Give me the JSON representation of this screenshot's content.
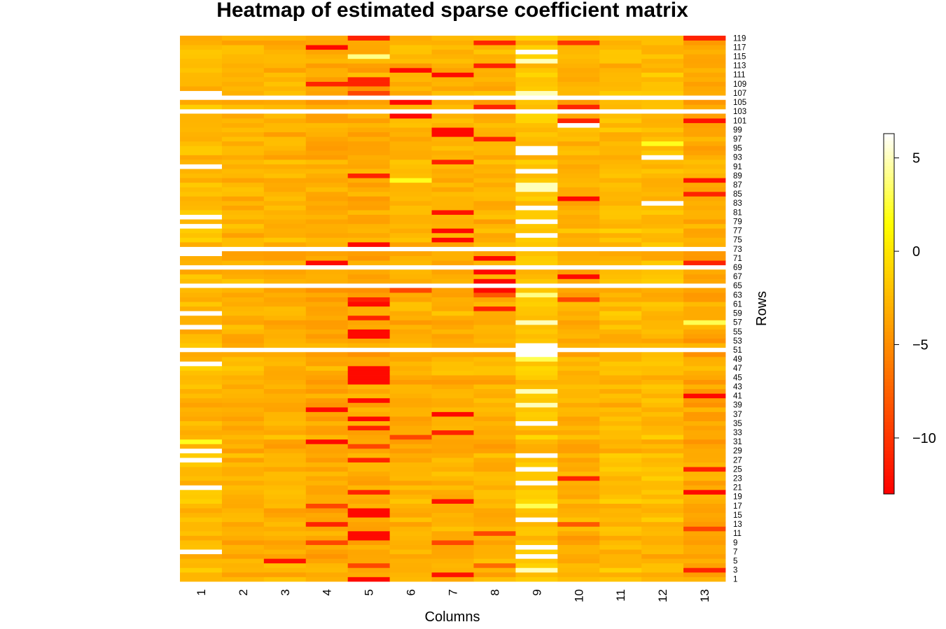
{
  "chart_data": {
    "type": "heatmap",
    "title": "Heatmap of estimated sparse coefficient matrix",
    "xlabel": "Columns",
    "ylabel": "Rows",
    "x_categories": [
      "1",
      "2",
      "3",
      "4",
      "5",
      "6",
      "7",
      "8",
      "9",
      "10",
      "11",
      "12",
      "13"
    ],
    "y_tick_labels": [
      "1",
      "3",
      "5",
      "7",
      "9",
      "11",
      "13",
      "15",
      "17",
      "19",
      "21",
      "23",
      "25",
      "27",
      "29",
      "31",
      "33",
      "35",
      "37",
      "39",
      "41",
      "43",
      "45",
      "47",
      "49",
      "51",
      "53",
      "55",
      "57",
      "59",
      "61",
      "63",
      "65",
      "67",
      "69",
      "71",
      "73",
      "75",
      "77",
      "79",
      "81",
      "83",
      "85",
      "87",
      "89",
      "91",
      "93",
      "95",
      "97",
      "99",
      "101",
      "103",
      "105",
      "107",
      "109",
      "111",
      "113",
      "115",
      "117",
      "119"
    ],
    "n_rows": 119,
    "n_cols": 13,
    "missing_rows": [
      51,
      65,
      69,
      73,
      103,
      106
    ],
    "missing_cells_value": "NA (white)",
    "colorbar": {
      "range": [
        -13,
        6.3
      ],
      "ticks": [
        5,
        0,
        -5,
        -10
      ],
      "tick_labels": [
        "5",
        "0",
        "−5",
        "−10"
      ],
      "colormap": "heat.colors (red → orange → yellow → white)"
    },
    "default_value_by_column": [
      -2.5,
      -3,
      -3,
      -3.5,
      -3.5,
      -3,
      -3,
      -3,
      -2,
      -3,
      -2.5,
      -2.5,
      -3.5
    ],
    "strong_cells": [
      {
        "row": 1,
        "col": 5,
        "value": -12.5
      },
      {
        "row": 2,
        "col": 7,
        "value": -12
      },
      {
        "row": 3,
        "col": 9,
        "value": 5
      },
      {
        "row": 3,
        "col": 13,
        "value": -11
      },
      {
        "row": 4,
        "col": 5,
        "value": -9
      },
      {
        "row": 4,
        "col": 8,
        "value": -7
      },
      {
        "row": 5,
        "col": 3,
        "value": -12
      },
      {
        "row": 6,
        "col": 9,
        "value": 6
      },
      {
        "row": 7,
        "col": 1,
        "value": 6
      },
      {
        "row": 8,
        "col": 9,
        "value": 6
      },
      {
        "row": 9,
        "col": 4,
        "value": -9
      },
      {
        "row": 9,
        "col": 7,
        "value": -9
      },
      {
        "row": 10,
        "col": 5,
        "value": -12.5
      },
      {
        "row": 11,
        "col": 5,
        "value": -12.5
      },
      {
        "row": 11,
        "col": 8,
        "value": -9
      },
      {
        "row": 12,
        "col": 13,
        "value": -9
      },
      {
        "row": 13,
        "col": 4,
        "value": -11
      },
      {
        "row": 13,
        "col": 10,
        "value": -8
      },
      {
        "row": 14,
        "col": 9,
        "value": 6
      },
      {
        "row": 15,
        "col": 5,
        "value": -12.5
      },
      {
        "row": 16,
        "col": 5,
        "value": -12.5
      },
      {
        "row": 17,
        "col": 4,
        "value": -9
      },
      {
        "row": 17,
        "col": 9,
        "value": 3
      },
      {
        "row": 18,
        "col": 7,
        "value": -12
      },
      {
        "row": 20,
        "col": 13,
        "value": -12.5
      },
      {
        "row": 20,
        "col": 5,
        "value": -11
      },
      {
        "row": 21,
        "col": 1,
        "value": 6
      },
      {
        "row": 22,
        "col": 9,
        "value": 6
      },
      {
        "row": 23,
        "col": 10,
        "value": -11
      },
      {
        "row": 25,
        "col": 9,
        "value": 6
      },
      {
        "row": 25,
        "col": 13,
        "value": -11
      },
      {
        "row": 27,
        "col": 1,
        "value": 6
      },
      {
        "row": 27,
        "col": 5,
        "value": -11
      },
      {
        "row": 28,
        "col": 9,
        "value": 6
      },
      {
        "row": 29,
        "col": 1,
        "value": 6
      },
      {
        "row": 30,
        "col": 5,
        "value": -9
      },
      {
        "row": 31,
        "col": 4,
        "value": -12.5
      },
      {
        "row": 31,
        "col": 1,
        "value": 2
      },
      {
        "row": 32,
        "col": 6,
        "value": -9
      },
      {
        "row": 33,
        "col": 7,
        "value": -11
      },
      {
        "row": 34,
        "col": 5,
        "value": -11
      },
      {
        "row": 35,
        "col": 9,
        "value": 6
      },
      {
        "row": 36,
        "col": 5,
        "value": -12.5
      },
      {
        "row": 37,
        "col": 7,
        "value": -12.5
      },
      {
        "row": 38,
        "col": 4,
        "value": -12.5
      },
      {
        "row": 39,
        "col": 9,
        "value": 5
      },
      {
        "row": 40,
        "col": 5,
        "value": -12.5
      },
      {
        "row": 41,
        "col": 13,
        "value": -12.5
      },
      {
        "row": 42,
        "col": 9,
        "value": 5
      },
      {
        "row": 44,
        "col": 5,
        "value": -12.5
      },
      {
        "row": 45,
        "col": 5,
        "value": -12.5
      },
      {
        "row": 46,
        "col": 5,
        "value": -12.5
      },
      {
        "row": 47,
        "col": 5,
        "value": -12.5
      },
      {
        "row": 48,
        "col": 1,
        "value": 6
      },
      {
        "row": 49,
        "col": 9,
        "value": 3
      },
      {
        "row": 50,
        "col": 9,
        "value": 6
      },
      {
        "row": 52,
        "col": 9,
        "value": 6
      },
      {
        "row": 54,
        "col": 5,
        "value": -12.5
      },
      {
        "row": 55,
        "col": 5,
        "value": -12.5
      },
      {
        "row": 56,
        "col": 1,
        "value": 6
      },
      {
        "row": 57,
        "col": 9,
        "value": 5
      },
      {
        "row": 57,
        "col": 13,
        "value": 3
      },
      {
        "row": 58,
        "col": 5,
        "value": -11
      },
      {
        "row": 59,
        "col": 1,
        "value": 6
      },
      {
        "row": 60,
        "col": 8,
        "value": -11
      },
      {
        "row": 61,
        "col": 5,
        "value": -12.5
      },
      {
        "row": 62,
        "col": 5,
        "value": -11
      },
      {
        "row": 62,
        "col": 10,
        "value": -9
      },
      {
        "row": 63,
        "col": 9,
        "value": 4
      },
      {
        "row": 63,
        "col": 8,
        "value": -8
      },
      {
        "row": 64,
        "col": 8,
        "value": -12.5
      },
      {
        "row": 64,
        "col": 6,
        "value": -9
      },
      {
        "row": 66,
        "col": 8,
        "value": -12.5
      },
      {
        "row": 67,
        "col": 10,
        "value": -12.5
      },
      {
        "row": 68,
        "col": 8,
        "value": -12.5
      },
      {
        "row": 70,
        "col": 4,
        "value": -12.5
      },
      {
        "row": 70,
        "col": 13,
        "value": -11
      },
      {
        "row": 71,
        "col": 8,
        "value": -12.5
      },
      {
        "row": 72,
        "col": 1,
        "value": 6
      },
      {
        "row": 74,
        "col": 5,
        "value": -12.5
      },
      {
        "row": 75,
        "col": 7,
        "value": -12.5
      },
      {
        "row": 76,
        "col": 9,
        "value": 6
      },
      {
        "row": 77,
        "col": 7,
        "value": -12.5
      },
      {
        "row": 78,
        "col": 1,
        "value": 6
      },
      {
        "row": 79,
        "col": 9,
        "value": 6
      },
      {
        "row": 80,
        "col": 1,
        "value": 6
      },
      {
        "row": 81,
        "col": 7,
        "value": -12
      },
      {
        "row": 82,
        "col": 9,
        "value": 6
      },
      {
        "row": 83,
        "col": 12,
        "value": 6
      },
      {
        "row": 84,
        "col": 10,
        "value": -12.5
      },
      {
        "row": 85,
        "col": 13,
        "value": -11
      },
      {
        "row": 86,
        "col": 9,
        "value": 5
      },
      {
        "row": 87,
        "col": 9,
        "value": 5
      },
      {
        "row": 88,
        "col": 6,
        "value": 2
      },
      {
        "row": 88,
        "col": 13,
        "value": -12
      },
      {
        "row": 89,
        "col": 5,
        "value": -11
      },
      {
        "row": 90,
        "col": 9,
        "value": 6
      },
      {
        "row": 91,
        "col": 1,
        "value": 6
      },
      {
        "row": 92,
        "col": 7,
        "value": -11
      },
      {
        "row": 93,
        "col": 12,
        "value": 6
      },
      {
        "row": 94,
        "col": 9,
        "value": 6
      },
      {
        "row": 95,
        "col": 9,
        "value": 6
      },
      {
        "row": 96,
        "col": 12,
        "value": 2
      },
      {
        "row": 97,
        "col": 8,
        "value": -11
      },
      {
        "row": 98,
        "col": 7,
        "value": -12.5
      },
      {
        "row": 99,
        "col": 7,
        "value": -12.5
      },
      {
        "row": 100,
        "col": 10,
        "value": 6
      },
      {
        "row": 101,
        "col": 10,
        "value": -11
      },
      {
        "row": 101,
        "col": 13,
        "value": -12
      },
      {
        "row": 102,
        "col": 6,
        "value": -12.5
      },
      {
        "row": 104,
        "col": 8,
        "value": -11
      },
      {
        "row": 104,
        "col": 10,
        "value": -11
      },
      {
        "row": 105,
        "col": 6,
        "value": -12.5
      },
      {
        "row": 107,
        "col": 1,
        "value": 6
      },
      {
        "row": 107,
        "col": 9,
        "value": 5
      },
      {
        "row": 107,
        "col": 5,
        "value": -9
      },
      {
        "row": 109,
        "col": 4,
        "value": -11
      },
      {
        "row": 109,
        "col": 5,
        "value": -11
      },
      {
        "row": 110,
        "col": 5,
        "value": -11
      },
      {
        "row": 111,
        "col": 7,
        "value": -12.5
      },
      {
        "row": 112,
        "col": 6,
        "value": -12.5
      },
      {
        "row": 113,
        "col": 8,
        "value": -11
      },
      {
        "row": 114,
        "col": 9,
        "value": 5
      },
      {
        "row": 115,
        "col": 5,
        "value": 4
      },
      {
        "row": 116,
        "col": 9,
        "value": 6
      },
      {
        "row": 117,
        "col": 4,
        "value": -12.5
      },
      {
        "row": 118,
        "col": 8,
        "value": -11
      },
      {
        "row": 118,
        "col": 10,
        "value": -10
      },
      {
        "row": 119,
        "col": 5,
        "value": -11
      },
      {
        "row": 119,
        "col": 13,
        "value": -11
      }
    ]
  }
}
